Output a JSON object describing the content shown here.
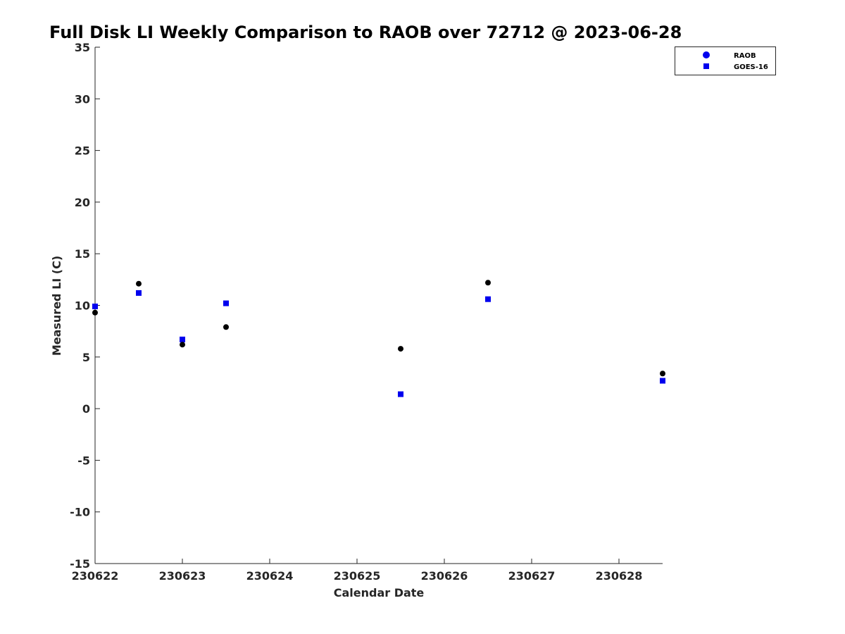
{
  "chart_data": {
    "type": "scatter",
    "title": "Full Disk LI Weekly Comparison to RAOB over 72712 @ 2023-06-28",
    "xlabel": "Calendar Date",
    "ylabel": "Measured LI (C)",
    "xlim": [
      "230622",
      "230628.5"
    ],
    "ylim": [
      -15,
      35
    ],
    "x_ticks": [
      "230622",
      "230623",
      "230624",
      "230625",
      "230626",
      "230627",
      "230628"
    ],
    "y_ticks": [
      35,
      30,
      25,
      20,
      15,
      10,
      5,
      0,
      -5,
      -10,
      -15
    ],
    "grid": false,
    "legend_position": "top-right",
    "colors": {
      "RAOB": "#000000",
      "GOES-16": "#0000ee"
    },
    "legend": [
      "RAOB",
      "GOES-16"
    ],
    "series": [
      {
        "name": "RAOB",
        "marker": "circle",
        "points": [
          {
            "x": "230622",
            "y": 9.3
          },
          {
            "x": "230622.5",
            "y": 12.1
          },
          {
            "x": "230623",
            "y": 6.2
          },
          {
            "x": "230623.5",
            "y": 7.9
          },
          {
            "x": "230625.5",
            "y": 5.8
          },
          {
            "x": "230626.5",
            "y": 12.2
          },
          {
            "x": "230628.5",
            "y": 3.4
          }
        ]
      },
      {
        "name": "GOES-16",
        "marker": "square",
        "points": [
          {
            "x": "230622",
            "y": 9.9
          },
          {
            "x": "230622.5",
            "y": 11.2
          },
          {
            "x": "230623",
            "y": 6.7
          },
          {
            "x": "230623.5",
            "y": 10.2
          },
          {
            "x": "230625.5",
            "y": 1.4
          },
          {
            "x": "230626.5",
            "y": 10.6
          },
          {
            "x": "230628.5",
            "y": 2.7
          }
        ]
      }
    ]
  }
}
